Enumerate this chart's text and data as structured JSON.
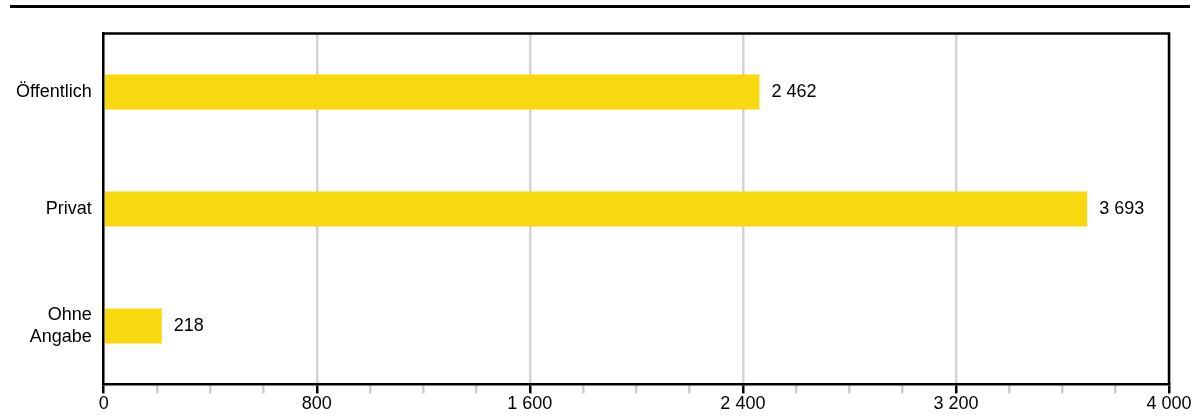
{
  "chart_data": {
    "type": "bar",
    "orientation": "horizontal",
    "categories": [
      "Öffentlich",
      "Privat",
      "Ohne Angabe"
    ],
    "values": [
      2462,
      3693,
      218
    ],
    "color": "#f8d90f",
    "value_labels": [
      "2 462",
      "3 693",
      "218"
    ],
    "xlim": [
      0,
      4000
    ],
    "xticks": [
      0,
      {
        "value": 200,
        "label": null
      },
      {
        "value": 400,
        "label": null
      },
      {
        "value": 600,
        "label": null
      },
      800,
      {
        "value": 1000,
        "label": null
      },
      {
        "value": 1200,
        "label": null
      },
      {
        "value": 1400,
        "label": null
      },
      {
        "value": 1600,
        "label": "1 600"
      },
      {
        "value": 1800,
        "label": null
      },
      {
        "value": 2000,
        "label": null
      },
      {
        "value": 2200,
        "label": null
      },
      {
        "value": 2400,
        "label": "2 400"
      },
      {
        "value": 2600,
        "label": null
      },
      {
        "value": 2800,
        "label": null
      },
      {
        "value": 3000,
        "label": null
      },
      {
        "value": 3200,
        "label": "3 200"
      },
      {
        "value": 3400,
        "label": null
      },
      {
        "value": 3600,
        "label": null
      },
      {
        "value": 3800,
        "label": null
      },
      {
        "value": 4000,
        "label": "4 000"
      }
    ],
    "grid": "x",
    "legend": false
  }
}
